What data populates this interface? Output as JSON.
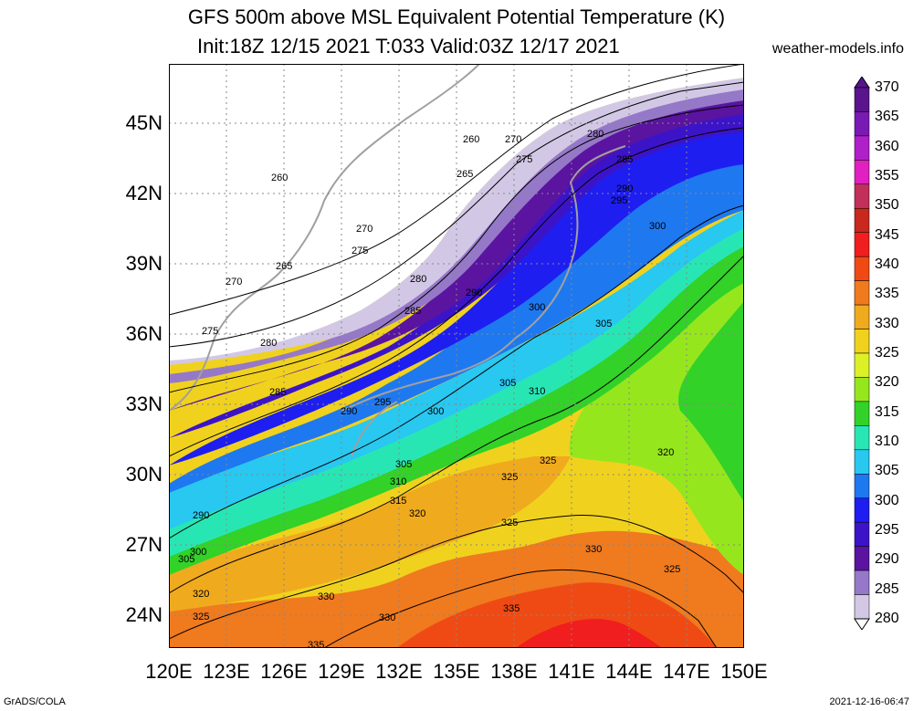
{
  "title_line1": "GFS 500m above MSL Equivalent Potential Temperature (K)",
  "title_line2": "Init:18Z 12/15 2021 T:033 Valid:03Z 12/17 2021",
  "source": "weather-models.info",
  "lat_labels": [
    "45N",
    "42N",
    "39N",
    "36N",
    "33N",
    "30N",
    "27N",
    "24N"
  ],
  "lon_labels": [
    "120E",
    "123E",
    "126E",
    "129E",
    "132E",
    "135E",
    "138E",
    "141E",
    "144E",
    "147E",
    "150E"
  ],
  "colorbar": {
    "levels": [
      370,
      365,
      360,
      355,
      350,
      345,
      340,
      335,
      330,
      325,
      320,
      315,
      310,
      305,
      300,
      295,
      290,
      285,
      280
    ],
    "colors": [
      "#5a148c",
      "#7a1ab4",
      "#b020c8",
      "#e020c0",
      "#c0305a",
      "#c8281e",
      "#f01e1e",
      "#f04a14",
      "#f07a1e",
      "#f0aa1e",
      "#f0d21e",
      "#dcf028",
      "#96e61e",
      "#32d228",
      "#28e6b4",
      "#28c8f0",
      "#1e78f0",
      "#1e1ef0",
      "#3c14c8",
      "#5a14a0",
      "#9678c8",
      "#d2c8e6"
    ]
  },
  "contour_labels": [
    "260",
    "265",
    "270",
    "275",
    "280",
    "285",
    "290",
    "295",
    "300",
    "305",
    "310",
    "315",
    "320",
    "325",
    "330",
    "335"
  ],
  "footer_left": "GrADS/COLA",
  "footer_right": "2021-12-16-06:47"
}
